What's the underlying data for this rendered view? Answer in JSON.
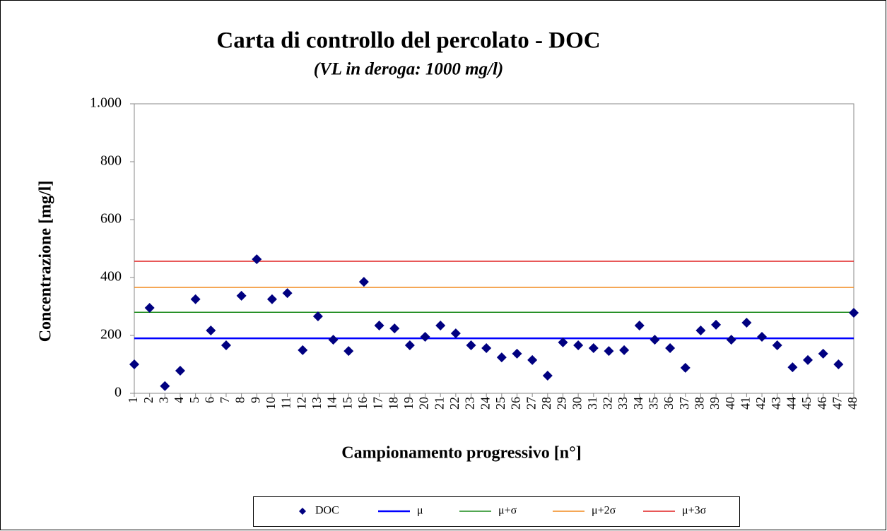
{
  "chart_data": {
    "type": "scatter",
    "title": "Carta di controllo del percolato - DOC",
    "subtitle": "(VL in deroga: 1000 mg/l)",
    "x_label": "Campionamento  progressivo [n°]",
    "y_label": "Concentrazione  [mg/l]",
    "categories": [
      "1",
      "2",
      "3",
      "4",
      "5",
      "6",
      "7",
      "8",
      "9",
      "10",
      "11",
      "12",
      "13",
      "14",
      "15",
      "16",
      "17",
      "18",
      "19",
      "20",
      "21",
      "22",
      "23",
      "24",
      "25",
      "26",
      "27",
      "28",
      "29",
      "30",
      "31",
      "32",
      "33",
      "34",
      "35",
      "36",
      "37",
      "38",
      "39",
      "40",
      "41",
      "42",
      "43",
      "44",
      "45",
      "46",
      "47",
      "48"
    ],
    "ylim": [
      0,
      1000
    ],
    "yticks": [
      0,
      200,
      400,
      600,
      800,
      {
        "value": 1000,
        "label": "1.000"
      }
    ],
    "legend": "bottom",
    "series": [
      {
        "name": "DOC",
        "type": "scatter",
        "color": "#000080",
        "values": [
          100,
          295,
          25,
          78,
          325,
          217,
          166,
          337,
          463,
          325,
          346,
          149,
          266,
          185,
          146,
          385,
          234,
          224,
          166,
          195,
          234,
          207,
          166,
          156,
          124,
          137,
          115,
          61,
          176,
          166,
          156,
          146,
          149,
          234,
          185,
          156,
          88,
          217,
          237,
          185,
          244,
          195,
          166,
          90,
          115,
          137,
          100,
          278
        ]
      },
      {
        "name": "μ",
        "type": "line",
        "color": "#0000ff",
        "values": [
          190,
          190,
          190,
          190,
          190,
          190,
          190,
          190,
          190,
          190,
          190,
          190,
          190,
          190,
          190,
          190,
          190,
          190,
          190,
          190,
          190,
          190,
          190,
          190,
          190,
          190,
          190,
          190,
          190,
          190,
          190,
          190,
          190,
          190,
          190,
          190,
          190,
          190,
          190,
          190,
          190,
          190,
          190,
          190,
          190,
          190,
          190,
          190
        ]
      },
      {
        "name": "μ+σ",
        "type": "line",
        "color": "#1a8a1a",
        "values": [
          280,
          280,
          280,
          280,
          280,
          280,
          280,
          280,
          280,
          280,
          280,
          280,
          280,
          280,
          280,
          280,
          280,
          280,
          280,
          280,
          280,
          280,
          280,
          280,
          280,
          280,
          280,
          280,
          280,
          280,
          280,
          280,
          280,
          280,
          280,
          280,
          280,
          280,
          280,
          280,
          280,
          280,
          280,
          280,
          280,
          280,
          280,
          280
        ]
      },
      {
        "name": "μ+2σ",
        "type": "line",
        "color": "#f28a1e",
        "values": [
          366,
          366,
          366,
          366,
          366,
          366,
          366,
          366,
          366,
          366,
          366,
          366,
          366,
          366,
          366,
          366,
          366,
          366,
          366,
          366,
          366,
          366,
          366,
          366,
          366,
          366,
          366,
          366,
          366,
          366,
          366,
          366,
          366,
          366,
          366,
          366,
          366,
          366,
          366,
          366,
          366,
          366,
          366,
          366,
          366,
          366,
          366,
          366
        ]
      },
      {
        "name": "μ+3σ",
        "type": "line",
        "color": "#e02020",
        "values": [
          456,
          456,
          456,
          456,
          456,
          456,
          456,
          456,
          456,
          456,
          456,
          456,
          456,
          456,
          456,
          456,
          456,
          456,
          456,
          456,
          456,
          456,
          456,
          456,
          456,
          456,
          456,
          456,
          456,
          456,
          456,
          456,
          456,
          456,
          456,
          456,
          456,
          456,
          456,
          456,
          456,
          456,
          456,
          456,
          456,
          456,
          456,
          456
        ]
      }
    ]
  }
}
